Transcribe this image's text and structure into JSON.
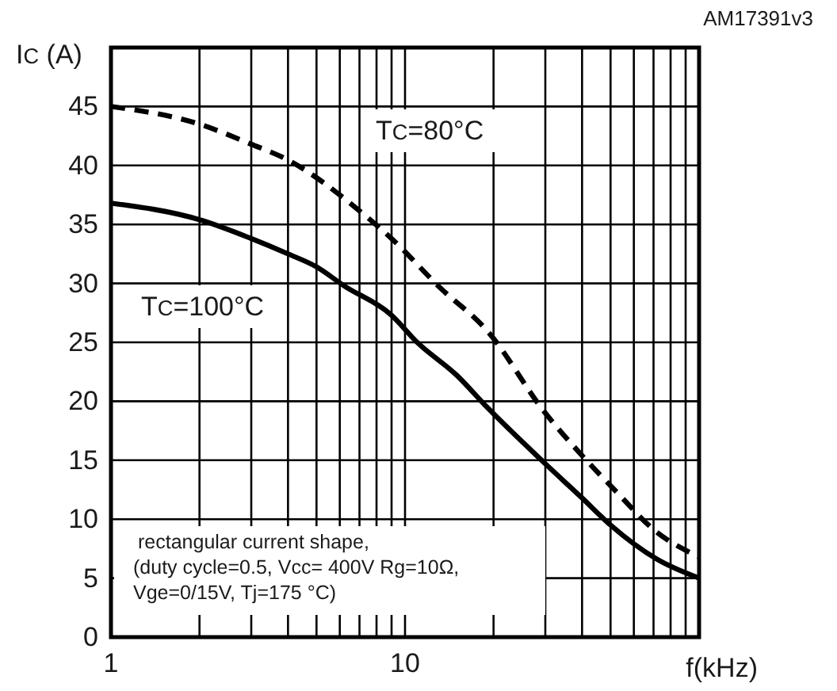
{
  "chart_data": {
    "type": "line",
    "xlabel": "f(kHz)",
    "ylabel": "I$_{C}$ (A)",
    "log": "x",
    "grid": true,
    "legend": false,
    "xlim": [
      1,
      100
    ],
    "ylim": [
      0,
      50
    ],
    "xticks": [
      1,
      {
        "value": 2,
        "label": null
      },
      {
        "value": 3,
        "label": null
      },
      {
        "value": 4,
        "label": null
      },
      {
        "value": 5,
        "label": null
      },
      {
        "value": 6,
        "label": null
      },
      {
        "value": 7,
        "label": null
      },
      {
        "value": 8,
        "label": null
      },
      {
        "value": 9,
        "label": null
      },
      10,
      {
        "value": 20,
        "label": null
      },
      {
        "value": 30,
        "label": null
      },
      {
        "value": 40,
        "label": null
      },
      {
        "value": 50,
        "label": null
      },
      {
        "value": 60,
        "label": null
      },
      {
        "value": 70,
        "label": null
      },
      {
        "value": 80,
        "label": null
      },
      {
        "value": 90,
        "label": null
      },
      {
        "value": 100,
        "label": null
      }
    ],
    "yticks": [
      0,
      5,
      10,
      15,
      20,
      25,
      30,
      35,
      40,
      45,
      {
        "value": 50,
        "label": null
      }
    ],
    "series": [
      {
        "name": "T$_{C}$=80°C",
        "color": "#000000",
        "line_style": "dashed",
        "x": [
          1,
          2,
          3,
          3.9,
          7.2,
          9,
          13.2,
          19,
          30,
          40,
          52,
          71,
          100
        ],
        "values": [
          45,
          43.5,
          41.8,
          40.6,
          35.9,
          33.8,
          29.6,
          26,
          19,
          15.4,
          12.4,
          9,
          6.8
        ]
      },
      {
        "name": "T$_{C}$=100°C",
        "color": "#000000",
        "line_style": "solid",
        "x": [
          1,
          2,
          3,
          4,
          5,
          6.2,
          9,
          11,
          15,
          19,
          30,
          40,
          50,
          72,
          100
        ],
        "values": [
          36.8,
          35.4,
          33.8,
          32.5,
          31.4,
          29.8,
          27.3,
          25,
          22.2,
          19.5,
          14.7,
          11.8,
          9.5,
          6.6,
          5
        ]
      }
    ],
    "annotations": [
      "AM17391v3",
      "rectangular current shape,\n(duty cycle=0.5, Vcc= 400V Rg=10Ω,\nVge=0/15V, Tj=175 °C)"
    ]
  }
}
